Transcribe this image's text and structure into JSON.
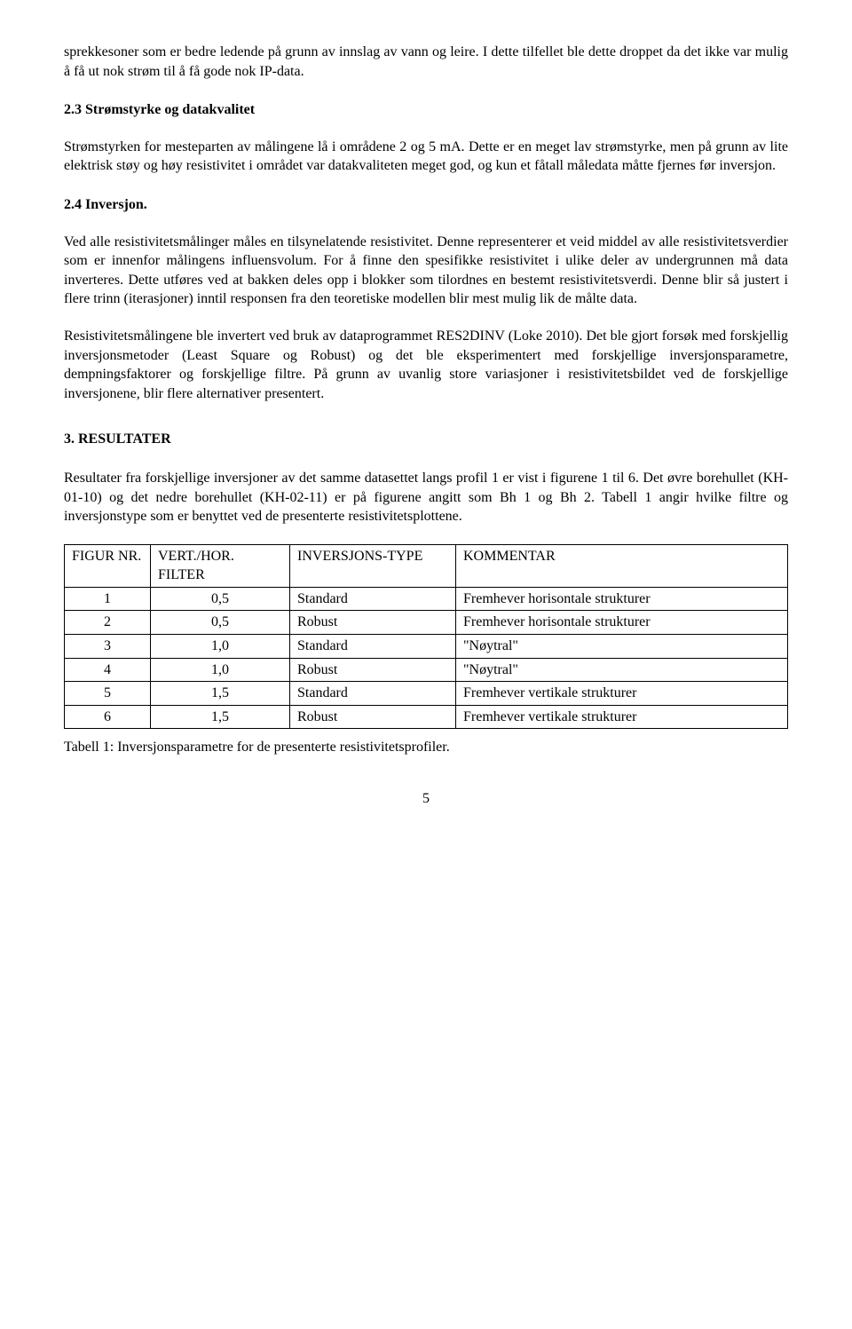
{
  "para_intro": "sprekkesoner som er bedre ledende på grunn av innslag av vann og leire. I dette tilfellet ble dette droppet da det ikke var mulig å få ut nok strøm til å få gode nok IP-data.",
  "h_23": "2.3  Strømstyrke og datakvalitet",
  "para_23": "Strømstyrken for mesteparten av målingene lå i områdene 2 og 5 mA. Dette er en meget lav strømstyrke, men på grunn av lite elektrisk støy og høy resistivitet i området var datakvaliteten meget god, og kun et fåtall måledata måtte fjernes før inversjon.",
  "h_24": "2.4  Inversjon.",
  "para_24a": "Ved alle resistivitetsmålinger måles en tilsynelatende resistivitet. Denne representerer et veid middel av alle resistivitetsverdier som er innenfor målingens influensvolum. For å finne den spesifikke resistivitet i ulike deler av undergrunnen må data inverteres. Dette utføres ved at bakken deles opp i blokker som tilordnes en bestemt resistivitetsverdi. Denne blir så justert i flere trinn (iterasjoner) inntil responsen fra den teoretiske modellen blir mest mulig lik de målte data.",
  "para_24b": "Resistivitetsmålingene ble invertert ved bruk av dataprogrammet RES2DINV (Loke 2010). Det ble gjort forsøk med forskjellig inversjonsmetoder (Least Square og Robust) og det ble eksperimentert med forskjellige inversjonsparametre, dempningsfaktorer og forskjellige filtre. På grunn av uvanlig store variasjoner i resistivitetsbildet ved de forskjellige inversjonene, blir flere alternativer presentert.",
  "h_3": "3.    RESULTATER",
  "para_3": "Resultater fra forskjellige inversjoner av det samme datasettet langs profil 1 er vist i figurene 1 til 6. Det øvre borehullet (KH-01-10) og det nedre borehullet (KH-02-11) er på figurene angitt som Bh 1 og Bh 2. Tabell 1 angir hvilke filtre og inversjonstype som er benyttet ved de presenterte resistivitetsplottene.",
  "table": {
    "columns": [
      "FIGUR NR.",
      "VERT./HOR. FILTER",
      "INVERSJONS-TYPE",
      "KOMMENTAR"
    ],
    "rows": [
      [
        "1",
        "0,5",
        "Standard",
        "Fremhever horisontale strukturer"
      ],
      [
        "2",
        "0,5",
        "Robust",
        "Fremhever horisontale strukturer"
      ],
      [
        "3",
        "1,0",
        "Standard",
        "\"Nøytral\""
      ],
      [
        "4",
        "1,0",
        "Robust",
        "\"Nøytral\""
      ],
      [
        "5",
        "1,5",
        "Standard",
        "Fremhever vertikale strukturer"
      ],
      [
        "6",
        "1,5",
        "Robust",
        "Fremhever vertikale strukturer"
      ]
    ],
    "col_align": [
      "left",
      "right",
      "left",
      "left"
    ]
  },
  "caption": "Tabell 1: Inversjonsparametre for de presenterte resistivitetsprofiler.",
  "page_number": "5"
}
